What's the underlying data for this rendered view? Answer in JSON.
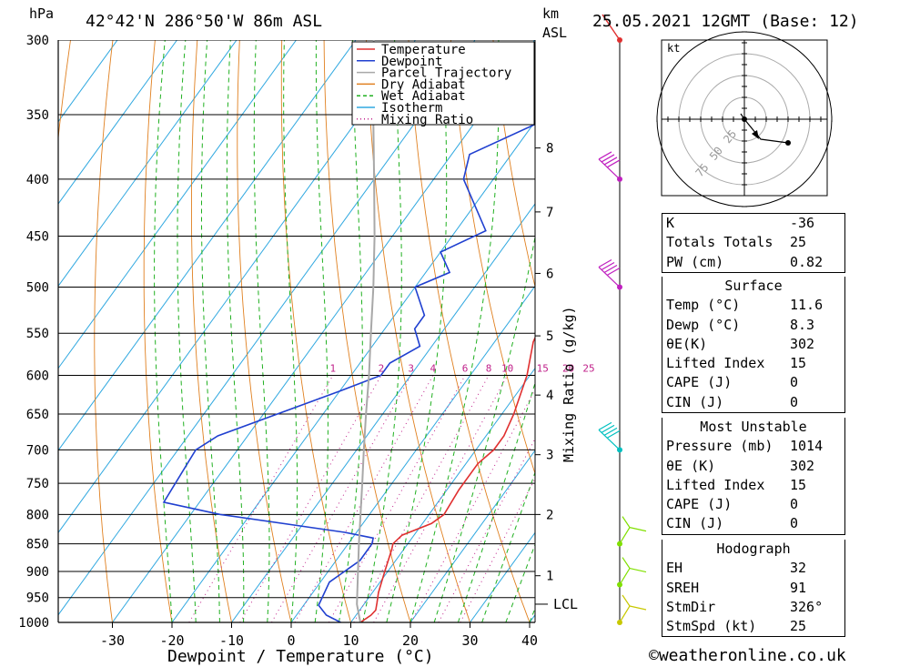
{
  "header": {
    "hpa_label": "hPa",
    "location": "42°42'N  286°50'W  86m  ASL",
    "km_label": "km",
    "asl_label": "ASL",
    "datetime": "25.05.2021  12GMT  (Base: 12)"
  },
  "chart_data": {
    "type": "line",
    "title": "Skew-T log-P sounding",
    "xlabel": "Dewpoint / Temperature (°C)",
    "ylabel": "hPa",
    "right_ylabel": "Mixing Ratio (g/kg)",
    "pressure_levels": [
      300,
      350,
      400,
      450,
      500,
      550,
      600,
      650,
      700,
      750,
      800,
      850,
      900,
      950,
      1000
    ],
    "temp_ticks": [
      -30,
      -20,
      -10,
      0,
      10,
      20,
      30,
      40
    ],
    "xlim": [
      -40,
      40
    ],
    "ylim": [
      1000,
      300
    ],
    "altitude_ticks_km": [
      {
        "km": "1",
        "p": 908
      },
      {
        "km": "2",
        "p": 800
      },
      {
        "km": "3",
        "p": 707
      },
      {
        "km": "4",
        "p": 625
      },
      {
        "km": "5",
        "p": 553
      },
      {
        "km": "6",
        "p": 486
      },
      {
        "km": "7",
        "p": 428
      },
      {
        "km": "8",
        "p": 375
      }
    ],
    "lcl_label": "LCL",
    "lcl_pressure": 963,
    "mixing_ratio_labels": [
      "1",
      "2",
      "3",
      "4",
      "6",
      "8",
      "10",
      "15",
      "20",
      "25"
    ],
    "legend": [
      "Temperature",
      "Dewpoint",
      "Parcel Trajectory",
      "Dry Adiabat",
      "Wet Adiabat",
      "Isotherm",
      "Mixing Ratio"
    ],
    "series": [
      {
        "name": "Temperature",
        "color": "#e03030",
        "points": [
          [
            1000,
            11.6
          ],
          [
            985,
            12.5
          ],
          [
            975,
            12.7
          ],
          [
            960,
            12.0
          ],
          [
            940,
            11.0
          ],
          [
            900,
            9.5
          ],
          [
            860,
            8.0
          ],
          [
            850,
            7.5
          ],
          [
            835,
            8.0
          ],
          [
            815,
            11.5
          ],
          [
            800,
            12.5
          ],
          [
            760,
            12.0
          ],
          [
            720,
            12.0
          ],
          [
            700,
            13.0
          ],
          [
            680,
            13.0
          ],
          [
            650,
            12.0
          ],
          [
            600,
            9.5
          ],
          [
            560,
            6.5
          ],
          [
            525,
            5.0
          ],
          [
            470,
            0.5
          ],
          [
            425,
            -3.5
          ],
          [
            380,
            -8.0
          ],
          [
            330,
            -16.5
          ],
          [
            300,
            -22.0
          ]
        ]
      },
      {
        "name": "Dewpoint",
        "color": "#2040d0",
        "points": [
          [
            1000,
            8.3
          ],
          [
            985,
            5.0
          ],
          [
            965,
            2.5
          ],
          [
            920,
            1.5
          ],
          [
            880,
            4.0
          ],
          [
            850,
            4.0
          ],
          [
            840,
            3.5
          ],
          [
            830,
            -2.0
          ],
          [
            800,
            -25.0
          ],
          [
            780,
            -36.0
          ],
          [
            700,
            -37.0
          ],
          [
            680,
            -35.0
          ],
          [
            620,
            -20.0
          ],
          [
            600,
            -15.0
          ],
          [
            585,
            -15.0
          ],
          [
            565,
            -12.0
          ],
          [
            545,
            -15.0
          ],
          [
            530,
            -15.0
          ],
          [
            500,
            -20.0
          ],
          [
            485,
            -16.0
          ],
          [
            465,
            -20.0
          ],
          [
            445,
            -15.0
          ],
          [
            400,
            -25.0
          ],
          [
            380,
            -27.0
          ],
          [
            355,
            -19.0
          ],
          [
            335,
            -18.0
          ],
          [
            300,
            -15.0
          ]
        ]
      },
      {
        "name": "Parcel Trajectory",
        "color": "#a8a8a8",
        "points": [
          [
            1000,
            11.6
          ],
          [
            963,
            8.8
          ],
          [
            900,
            5.0
          ],
          [
            850,
            1.8
          ],
          [
            800,
            -1.5
          ],
          [
            750,
            -5.0
          ],
          [
            700,
            -8.8
          ],
          [
            650,
            -12.8
          ],
          [
            600,
            -17.0
          ],
          [
            550,
            -21.8
          ],
          [
            500,
            -27.0
          ],
          [
            450,
            -33.0
          ],
          [
            400,
            -40.0
          ],
          [
            350,
            -48.0
          ],
          [
            300,
            -57.0
          ]
        ]
      }
    ],
    "wind_barbs": [
      {
        "p": 1000,
        "color": "#c8c800"
      },
      {
        "p": 925,
        "color": "#80e000"
      },
      {
        "p": 850,
        "color": "#80e000"
      },
      {
        "p": 700,
        "color": "#00c0c0"
      },
      {
        "p": 500,
        "color": "#c020c0"
      },
      {
        "p": 400,
        "color": "#c020c0"
      },
      {
        "p": 300,
        "color": "#e03030"
      }
    ],
    "hodograph": {
      "unit": "kt",
      "ring_labels": [
        "25",
        "50",
        "75"
      ]
    }
  },
  "indices": [
    {
      "label": "K",
      "value": "-36"
    },
    {
      "label": "Totals Totals",
      "value": "25"
    },
    {
      "label": "PW (cm)",
      "value": "0.82"
    }
  ],
  "surface": {
    "title": "Surface",
    "rows": [
      {
        "label": "Temp (°C)",
        "value": "11.6"
      },
      {
        "label": "Dewp (°C)",
        "value": "8.3"
      },
      {
        "label": "θE(K)",
        "value": "302"
      },
      {
        "label": "Lifted Index",
        "value": "15"
      },
      {
        "label": "CAPE (J)",
        "value": "0"
      },
      {
        "label": "CIN (J)",
        "value": "0"
      }
    ]
  },
  "most_unstable": {
    "title": "Most Unstable",
    "rows": [
      {
        "label": "Pressure (mb)",
        "value": "1014"
      },
      {
        "label": "θE (K)",
        "value": "302"
      },
      {
        "label": "Lifted Index",
        "value": "15"
      },
      {
        "label": "CAPE (J)",
        "value": "0"
      },
      {
        "label": "CIN (J)",
        "value": "0"
      }
    ]
  },
  "hodograph_table": {
    "title": "Hodograph",
    "rows": [
      {
        "label": "EH",
        "value": "32"
      },
      {
        "label": "SREH",
        "value": "91"
      },
      {
        "label": "StmDir",
        "value": "326°"
      },
      {
        "label": "StmSpd (kt)",
        "value": "25"
      }
    ]
  },
  "footer": "©weatheronline.co.uk"
}
